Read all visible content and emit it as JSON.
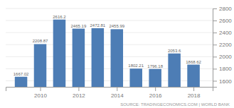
{
  "chart_data": {
    "type": "bar",
    "x": [
      2009,
      2010,
      2011,
      2012,
      2013,
      2014,
      2015,
      2016,
      2017,
      2018
    ],
    "values": [
      1667.02,
      2208.87,
      2616.2,
      2465.19,
      2472.81,
      2455.99,
      1802.21,
      1796.18,
      2053.6,
      1868.62
    ],
    "color": "#4d7db5",
    "xlim": [
      2008.2,
      2019.0
    ],
    "xticks": [
      2010,
      2012,
      2014,
      2016,
      2018
    ],
    "ylim": [
      1500,
      2800
    ],
    "yticks": [
      1600,
      1800,
      2000,
      2200,
      2400,
      2600,
      2800
    ],
    "grid": true,
    "data_labels": true,
    "annotations": [
      "SOURCE: TRADINGECONOMICS.COM | WORLD BANK"
    ]
  }
}
